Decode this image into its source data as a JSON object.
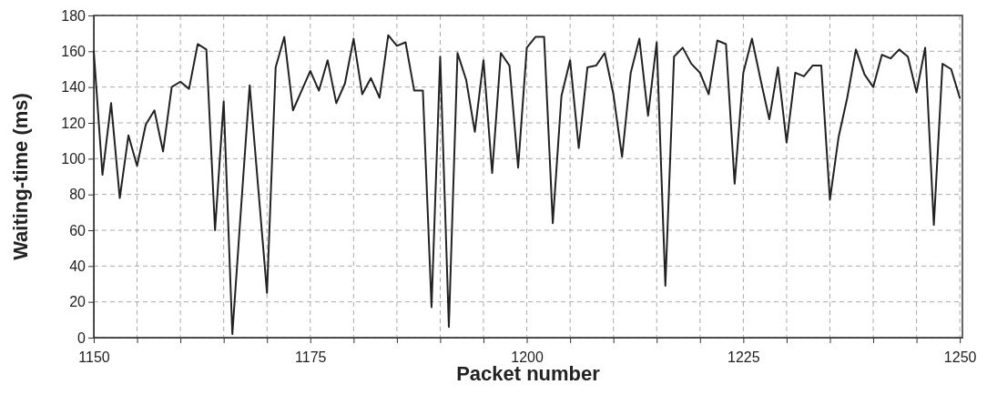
{
  "chart_data": {
    "type": "line",
    "xlabel": "Packet number",
    "ylabel": "Waiting-time (ms)",
    "x": [
      1150,
      1151,
      1152,
      1153,
      1154,
      1155,
      1156,
      1157,
      1158,
      1159,
      1160,
      1161,
      1162,
      1163,
      1164,
      1165,
      1166,
      1167,
      1168,
      1169,
      1170,
      1171,
      1172,
      1173,
      1174,
      1175,
      1176,
      1177,
      1178,
      1179,
      1180,
      1181,
      1182,
      1183,
      1184,
      1185,
      1186,
      1187,
      1188,
      1189,
      1190,
      1191,
      1192,
      1193,
      1194,
      1195,
      1196,
      1197,
      1198,
      1199,
      1200,
      1201,
      1202,
      1203,
      1204,
      1205,
      1206,
      1207,
      1208,
      1209,
      1210,
      1211,
      1212,
      1213,
      1214,
      1215,
      1216,
      1217,
      1218,
      1219,
      1220,
      1221,
      1222,
      1223,
      1224,
      1225,
      1226,
      1227,
      1228,
      1229,
      1230,
      1231,
      1232,
      1233,
      1234,
      1235,
      1236,
      1237,
      1238,
      1239,
      1240,
      1241,
      1242,
      1243,
      1244,
      1245,
      1246,
      1247,
      1248,
      1249,
      1250
    ],
    "series": [
      {
        "color": "#222222",
        "values": [
          160,
          91,
          131,
          78,
          113,
          96,
          119,
          127,
          104,
          140,
          143,
          139,
          164,
          161,
          60,
          132,
          2,
          72,
          141,
          83,
          25,
          151,
          168,
          127,
          138,
          149,
          138,
          155,
          131,
          142,
          167,
          136,
          145,
          134,
          169,
          163,
          165,
          138,
          138,
          17,
          157,
          6,
          159,
          144,
          115,
          155,
          92,
          159,
          152,
          95,
          162,
          168,
          168,
          64,
          135,
          155,
          106,
          151,
          152,
          159,
          136,
          101,
          148,
          167,
          124,
          165,
          29,
          157,
          162,
          153,
          148,
          136,
          166,
          164,
          86,
          148,
          167,
          144,
          122,
          151,
          109,
          148,
          146,
          152,
          152,
          77,
          112,
          134,
          161,
          147,
          140,
          158,
          156,
          161,
          157,
          137,
          162,
          63,
          153,
          150,
          134
        ]
      }
    ],
    "xlim": [
      1150,
      1250.3
    ],
    "ylim": [
      0,
      180
    ],
    "xticks": [
      1150,
      {
        "value": 1155,
        "label": null
      },
      {
        "value": 1160,
        "label": null
      },
      {
        "value": 1165,
        "label": null
      },
      {
        "value": 1170,
        "label": null
      },
      1175,
      {
        "value": 1180,
        "label": null
      },
      {
        "value": 1185,
        "label": null
      },
      {
        "value": 1190,
        "label": null
      },
      {
        "value": 1195,
        "label": null
      },
      1200,
      {
        "value": 1205,
        "label": null
      },
      {
        "value": 1210,
        "label": null
      },
      {
        "value": 1215,
        "label": null
      },
      {
        "value": 1220,
        "label": null
      },
      1225,
      {
        "value": 1230,
        "label": null
      },
      {
        "value": 1235,
        "label": null
      },
      {
        "value": 1240,
        "label": null
      },
      {
        "value": 1245,
        "label": null
      },
      1250
    ],
    "yticks": [
      0,
      20,
      40,
      60,
      80,
      100,
      120,
      140,
      160,
      180
    ],
    "grid": true,
    "marker": "none",
    "line_style": "solid"
  }
}
